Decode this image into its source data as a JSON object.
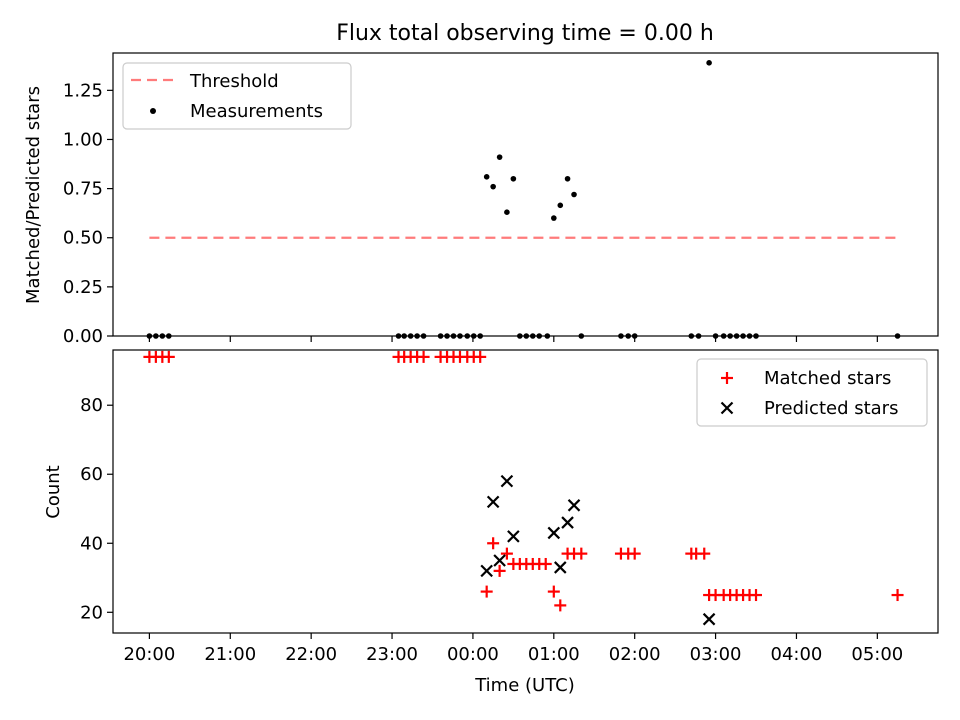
{
  "chart_data": {
    "type": "scatter",
    "title": "Flux total observing time = 0.00 h",
    "xlabel": "Time (UTC)",
    "xlim_hours": [
      19.55,
      29.75
    ],
    "xticks": [
      {
        "h": 20,
        "label": "20:00"
      },
      {
        "h": 21,
        "label": "21:00"
      },
      {
        "h": 22,
        "label": "22:00"
      },
      {
        "h": 23,
        "label": "23:00"
      },
      {
        "h": 24,
        "label": "00:00"
      },
      {
        "h": 25,
        "label": "01:00"
      },
      {
        "h": 26,
        "label": "02:00"
      },
      {
        "h": 27,
        "label": "03:00"
      },
      {
        "h": 28,
        "label": "04:00"
      },
      {
        "h": 29,
        "label": "05:00"
      }
    ],
    "top": {
      "ylabel": "Matched/Predicted stars",
      "ylim": [
        0,
        1.44
      ],
      "yticks": [
        0.0,
        0.25,
        0.5,
        0.75,
        1.0,
        1.25
      ],
      "ytick_labels": [
        "0.00",
        "0.25",
        "0.50",
        "0.75",
        "1.00",
        "1.25"
      ],
      "threshold": {
        "name": "Threshold",
        "value": 0.5,
        "x": [
          20.0,
          29.25
        ],
        "color": "#ff7b7b"
      },
      "measurements": {
        "name": "Measurements",
        "color": "#000000",
        "x": [
          20.0,
          20.08,
          20.16,
          20.24,
          23.08,
          23.15,
          23.23,
          23.31,
          23.39,
          23.6,
          23.68,
          23.76,
          23.84,
          23.93,
          24.01,
          24.09,
          24.17,
          24.25,
          24.33,
          24.42,
          24.5,
          24.58,
          24.66,
          24.74,
          24.82,
          24.92,
          25.0,
          25.08,
          25.17,
          25.25,
          25.34,
          25.83,
          25.92,
          26.0,
          26.7,
          26.79,
          26.92,
          27.0,
          27.1,
          27.18,
          27.26,
          27.34,
          27.42,
          27.5,
          29.25
        ],
        "y": [
          0,
          0,
          0,
          0,
          0,
          0,
          0,
          0,
          0,
          0,
          0,
          0,
          0,
          0,
          0,
          0,
          0.81,
          0.76,
          0.91,
          0.63,
          0.8,
          0,
          0,
          0,
          0,
          0,
          0.6,
          0.665,
          0.8,
          0.72,
          0,
          0,
          0,
          0,
          0,
          0,
          1.39,
          0,
          0,
          0,
          0,
          0,
          0,
          0,
          0
        ]
      },
      "legend_position": "upper-left"
    },
    "bottom": {
      "ylabel": "Count",
      "ylim": [
        14,
        96
      ],
      "yticks": [
        20,
        40,
        60,
        80
      ],
      "ytick_labels": [
        "20",
        "40",
        "60",
        "80"
      ],
      "matched": {
        "name": "Matched stars",
        "color": "#ff0000",
        "x": [
          20.0,
          20.08,
          20.16,
          20.24,
          23.08,
          23.15,
          23.23,
          23.31,
          23.39,
          23.6,
          23.68,
          23.76,
          23.84,
          23.93,
          24.01,
          24.09,
          24.17,
          24.25,
          24.33,
          24.42,
          24.5,
          24.58,
          24.66,
          24.74,
          24.82,
          24.9,
          25.0,
          25.08,
          25.17,
          25.25,
          25.34,
          25.83,
          25.92,
          26.0,
          26.7,
          26.76,
          26.86,
          26.92,
          27.0,
          27.1,
          27.18,
          27.26,
          27.34,
          27.42,
          27.5,
          29.25
        ],
        "y": [
          94,
          94,
          94,
          94,
          94,
          94,
          94,
          94,
          94,
          94,
          94,
          94,
          94,
          94,
          94,
          94,
          26,
          40,
          32,
          37,
          34,
          34,
          34,
          34,
          34,
          34,
          26,
          22,
          37,
          37,
          37,
          37,
          37,
          37,
          37,
          37,
          37,
          25,
          25,
          25,
          25,
          25,
          25,
          25,
          25,
          25
        ]
      },
      "predicted": {
        "name": "Predicted stars",
        "color": "#000000",
        "x": [
          24.17,
          24.25,
          24.33,
          24.42,
          24.5,
          25.0,
          25.08,
          25.17,
          25.25,
          26.92
        ],
        "y": [
          32,
          52,
          35,
          58,
          42,
          43,
          33,
          46,
          51,
          18
        ]
      },
      "legend_position": "upper-right"
    }
  }
}
